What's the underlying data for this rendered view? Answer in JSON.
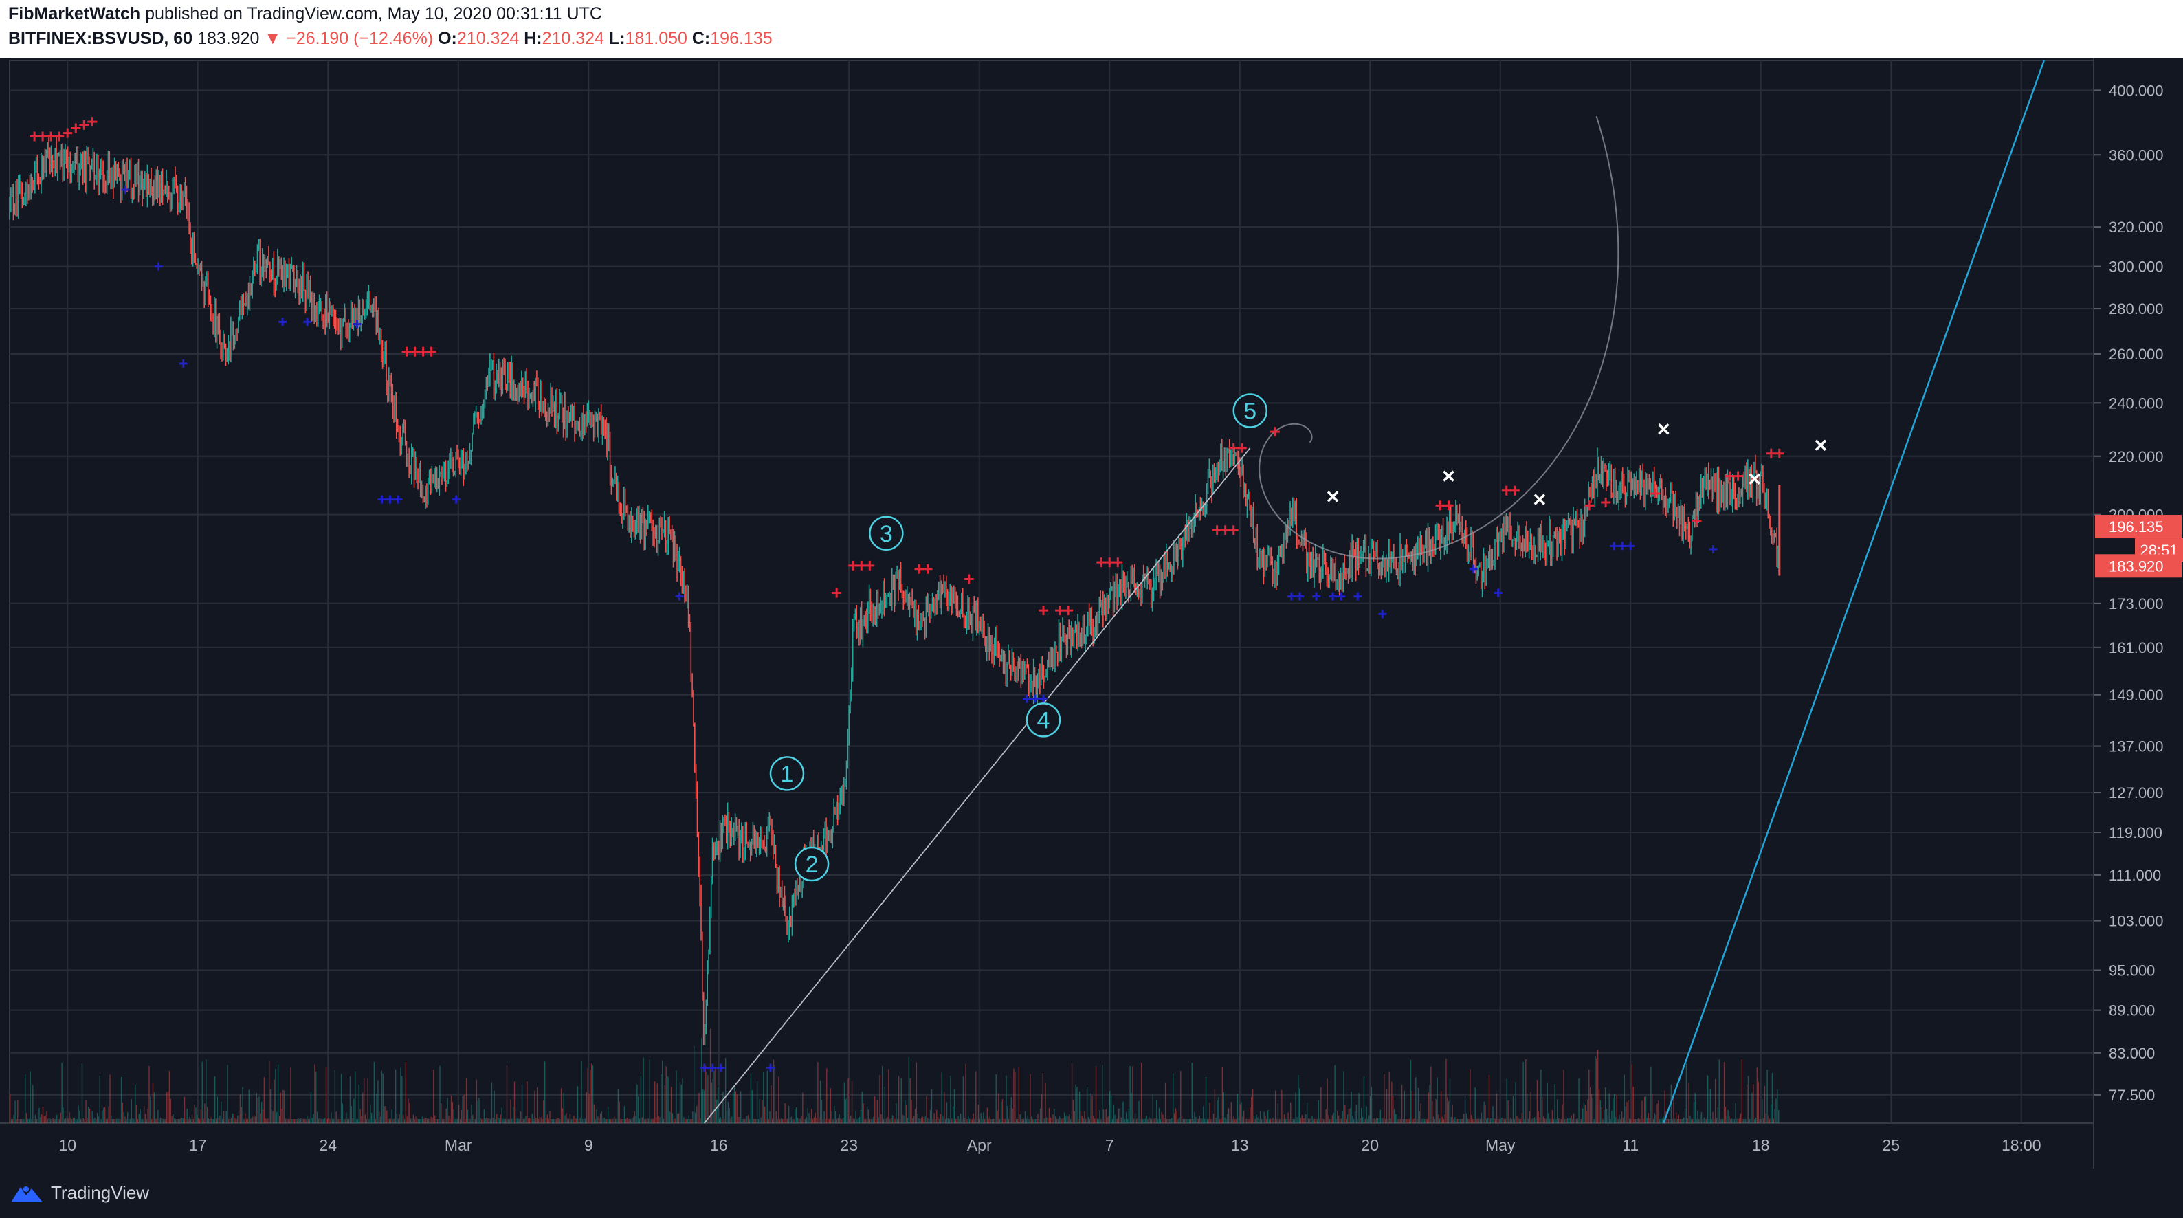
{
  "header": {
    "author": "FibMarketWatch",
    "published": "published on TradingView.com, May 10, 2020 00:31:11 UTC",
    "symbol": "BITFINEX:BSVUSD, 60",
    "last": "183.920",
    "change_arrow": "▼",
    "change": "−26.190 (−12.46%)",
    "o_label": "O:",
    "o": "210.324",
    "h_label": "H:",
    "h": "210.324",
    "l_label": "L:",
    "l": "181.050",
    "c_label": "C:",
    "c": "196.135"
  },
  "footer": {
    "brand": "TradingView",
    "brand_icon": "tradingview-logo-icon"
  },
  "colors": {
    "background": "#131722",
    "grid": "#2a2e39",
    "up": "#26a69a",
    "down": "#ef5350",
    "buy_marker": "#1e22c8",
    "sell_marker": "#e0283a",
    "fib": "#9598a1",
    "trendline": "#22a5d6",
    "wave": "#4dd0e1",
    "price_tag": "#ef5350"
  },
  "chart_data": {
    "type": "candlestick",
    "y_scale": "log",
    "ylim": [
      74,
      420
    ],
    "y_ticks": [
      "400.000",
      "360.000",
      "320.000",
      "300.000",
      "280.000",
      "260.000",
      "240.000",
      "220.000",
      "200.000",
      "173.000",
      "161.000",
      "149.000",
      "137.000",
      "127.000",
      "119.000",
      "111.000",
      "103.000",
      "95.000",
      "89.000",
      "83.000",
      "77.500"
    ],
    "x_ticks": [
      "10",
      "17",
      "24",
      "Mar",
      "9",
      "16",
      "23",
      "Apr",
      "7",
      "13",
      "20",
      "May",
      "11",
      "18",
      "25",
      "18:00"
    ],
    "price_tags": {
      "close": "196.135",
      "countdown": "28:51",
      "last": "183.920"
    },
    "path": [
      [
        0,
        330
      ],
      [
        5,
        360
      ],
      [
        10,
        350
      ],
      [
        17,
        342
      ],
      [
        21,
        338
      ],
      [
        22,
        312
      ],
      [
        24,
        285
      ],
      [
        26,
        258
      ],
      [
        30,
        302
      ],
      [
        35,
        292
      ],
      [
        40,
        270
      ],
      [
        44,
        282
      ],
      [
        47,
        228
      ],
      [
        50,
        210
      ],
      [
        55,
        218
      ],
      [
        58,
        252
      ],
      [
        62,
        248
      ],
      [
        67,
        235
      ],
      [
        72,
        230
      ],
      [
        73,
        210
      ],
      [
        75,
        198
      ],
      [
        80,
        193
      ],
      [
        82,
        176
      ],
      [
        83,
        128
      ],
      [
        84,
        83
      ],
      [
        85,
        116
      ],
      [
        87,
        120
      ],
      [
        90,
        116
      ],
      [
        92,
        119
      ],
      [
        94,
        101
      ],
      [
        96,
        113
      ],
      [
        99,
        118
      ],
      [
        101,
        127
      ],
      [
        102,
        165
      ],
      [
        105,
        174
      ],
      [
        108,
        178
      ],
      [
        110,
        168
      ],
      [
        113,
        176
      ],
      [
        117,
        168
      ],
      [
        120,
        158
      ],
      [
        124,
        151
      ],
      [
        127,
        162
      ],
      [
        131,
        167
      ],
      [
        135,
        180
      ],
      [
        138,
        176
      ],
      [
        142,
        192
      ],
      [
        145,
        210
      ],
      [
        147,
        220
      ],
      [
        149,
        213
      ],
      [
        151,
        188
      ],
      [
        153,
        181
      ],
      [
        155,
        201
      ],
      [
        157,
        186
      ],
      [
        160,
        180
      ],
      [
        163,
        188
      ],
      [
        166,
        185
      ],
      [
        168,
        186
      ],
      [
        172,
        190
      ],
      [
        175,
        198
      ],
      [
        178,
        182
      ],
      [
        181,
        195
      ],
      [
        184,
        190
      ],
      [
        187,
        192
      ],
      [
        190,
        196
      ],
      [
        192,
        215
      ],
      [
        195,
        208
      ],
      [
        198,
        210
      ],
      [
        201,
        205
      ],
      [
        203,
        194
      ],
      [
        205,
        210
      ],
      [
        208,
        207
      ],
      [
        210,
        212
      ],
      [
        212,
        211
      ],
      [
        213,
        196
      ],
      [
        214,
        184
      ]
    ],
    "volume_spikes": [
      [
        83,
        84
      ],
      [
        84,
        87
      ],
      [
        85,
        82
      ],
      [
        101,
        83
      ],
      [
        191,
        84
      ],
      [
        192,
        82
      ],
      [
        30,
        88
      ],
      [
        70,
        85
      ]
    ],
    "sell_markers": [
      [
        3,
        371
      ],
      [
        4,
        371
      ],
      [
        5,
        371
      ],
      [
        6,
        371
      ],
      [
        7,
        373
      ],
      [
        8,
        376
      ],
      [
        9,
        378
      ],
      [
        10,
        380
      ],
      [
        48,
        261
      ],
      [
        49,
        261
      ],
      [
        50,
        261
      ],
      [
        51,
        261
      ],
      [
        100,
        176
      ],
      [
        102,
        184
      ],
      [
        103,
        184
      ],
      [
        104,
        184
      ],
      [
        110,
        183
      ],
      [
        111,
        183
      ],
      [
        116,
        180
      ],
      [
        125,
        171
      ],
      [
        127,
        171
      ],
      [
        128,
        171
      ],
      [
        132,
        185
      ],
      [
        133,
        185
      ],
      [
        134,
        185
      ],
      [
        146,
        195
      ],
      [
        147,
        195
      ],
      [
        148,
        195
      ],
      [
        148,
        223
      ],
      [
        149,
        223
      ],
      [
        153,
        229
      ],
      [
        173,
        203
      ],
      [
        174,
        203
      ],
      [
        181,
        208
      ],
      [
        182,
        208
      ],
      [
        191,
        203
      ],
      [
        193,
        204
      ],
      [
        199,
        207
      ],
      [
        204,
        198
      ],
      [
        208,
        213
      ],
      [
        209,
        213
      ],
      [
        213,
        221
      ],
      [
        214,
        221
      ]
    ],
    "buy_markers": [
      [
        14,
        340
      ],
      [
        18,
        300
      ],
      [
        21,
        256
      ],
      [
        33,
        274
      ],
      [
        36,
        274
      ],
      [
        42,
        273
      ],
      [
        45,
        205
      ],
      [
        46,
        205
      ],
      [
        47,
        205
      ],
      [
        54,
        205
      ],
      [
        81,
        175
      ],
      [
        84,
        81
      ],
      [
        85,
        81
      ],
      [
        86,
        81
      ],
      [
        92,
        81
      ],
      [
        123,
        148
      ],
      [
        124,
        148
      ],
      [
        125,
        148
      ],
      [
        155,
        175
      ],
      [
        156,
        175
      ],
      [
        158,
        175
      ],
      [
        160,
        175
      ],
      [
        161,
        175
      ],
      [
        163,
        175
      ],
      [
        166,
        170
      ],
      [
        177,
        183
      ],
      [
        180,
        176
      ],
      [
        194,
        190
      ],
      [
        195,
        190
      ],
      [
        196,
        190
      ],
      [
        206,
        189
      ]
    ],
    "x_markers": [
      [
        160,
        206
      ],
      [
        174,
        213
      ],
      [
        185,
        205
      ],
      [
        200,
        230
      ],
      [
        211,
        212
      ],
      [
        219,
        224
      ]
    ],
    "wave_labels": [
      {
        "label": "1",
        "t": 94,
        "v": 131
      },
      {
        "label": "2",
        "t": 97,
        "v": 113
      },
      {
        "label": "3",
        "t": 106,
        "v": 194
      },
      {
        "label": "4",
        "t": 125,
        "v": 143
      },
      {
        "label": "5",
        "t": 150,
        "v": 237
      }
    ],
    "lines": [
      {
        "kind": "fib-trend",
        "t1": 84,
        "v1": 74,
        "t2": 150,
        "v2": 223
      },
      {
        "kind": "trendline",
        "t1": 200,
        "v1": 74,
        "t2": 246,
        "v2": 420
      }
    ]
  }
}
